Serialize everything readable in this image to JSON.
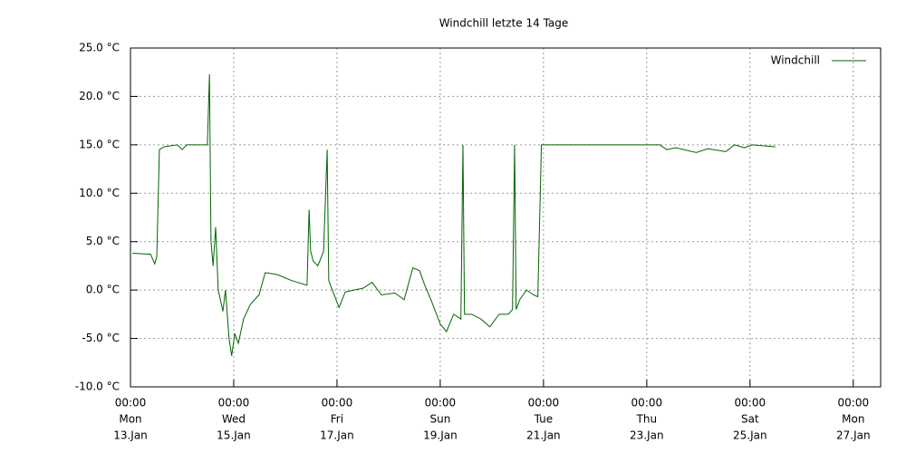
{
  "chart_data": {
    "type": "line",
    "title": "Windchill letzte 14 Tage",
    "xlim": [
      13,
      27.53
    ],
    "ylim": [
      -10,
      25
    ],
    "grid": true,
    "legend": "upper right",
    "xticks": [
      {
        "value": 13,
        "label": [
          "00:00",
          "Mon",
          "13.Jan"
        ]
      },
      {
        "value": 15,
        "label": [
          "00:00",
          "Wed",
          "15.Jan"
        ]
      },
      {
        "value": 17,
        "label": [
          "00:00",
          "Fri",
          "17.Jan"
        ]
      },
      {
        "value": 19,
        "label": [
          "00:00",
          "Sun",
          "19.Jan"
        ]
      },
      {
        "value": 21,
        "label": [
          "00:00",
          "Tue",
          "21.Jan"
        ]
      },
      {
        "value": 23,
        "label": [
          "00:00",
          "Thu",
          "23.Jan"
        ]
      },
      {
        "value": 25,
        "label": [
          "00:00",
          "Sat",
          "25.Jan"
        ]
      },
      {
        "value": 27,
        "label": [
          "00:00",
          "Mon",
          "27.Jan"
        ]
      }
    ],
    "yticks": [
      {
        "value": -10,
        "label": "-10.0 °C"
      },
      {
        "value": -5,
        "label": "-5.0 °C"
      },
      {
        "value": 0,
        "label": "0.0 °C"
      },
      {
        "value": 5,
        "label": "5.0 °C"
      },
      {
        "value": 10,
        "label": "10.0 °C"
      },
      {
        "value": 15,
        "label": "15.0 °C"
      },
      {
        "value": 20,
        "label": "20.0 °C"
      },
      {
        "value": 25,
        "label": "25.0 °C"
      }
    ],
    "x": [
      13.04,
      13.39,
      13.47,
      13.51,
      13.56,
      13.65,
      13.91,
      14.0,
      14.09,
      14.49,
      14.53,
      14.56,
      14.6,
      14.65,
      14.7,
      14.79,
      14.84,
      14.91,
      14.96,
      15.02,
      15.09,
      15.19,
      15.32,
      15.49,
      15.61,
      15.84,
      16.11,
      16.42,
      16.46,
      16.49,
      16.54,
      16.63,
      16.74,
      16.81,
      16.84,
      16.91,
      17.04,
      17.16,
      17.33,
      17.51,
      17.68,
      17.86,
      18.12,
      18.3,
      18.47,
      18.6,
      18.7,
      18.82,
      19.0,
      19.12,
      19.26,
      19.4,
      19.44,
      19.47,
      19.61,
      19.79,
      19.96,
      20.14,
      20.32,
      20.4,
      20.44,
      20.47,
      20.54,
      20.67,
      20.81,
      20.89,
      20.96,
      23.25,
      23.39,
      23.56,
      23.96,
      24.18,
      24.53,
      24.7,
      24.89,
      25.05,
      25.49
    ],
    "series": [
      {
        "name": "Windchill",
        "color": "#006400",
        "values": [
          3.8,
          3.7,
          2.7,
          3.5,
          14.5,
          14.8,
          15,
          14.5,
          15,
          15,
          22.3,
          5,
          2.5,
          6.5,
          0,
          -2.2,
          0,
          -5,
          -6.8,
          -4.5,
          -5.5,
          -3,
          -1.5,
          -0.5,
          1.8,
          1.6,
          1,
          0.5,
          8.3,
          4,
          3,
          2.5,
          4,
          14.5,
          1,
          0,
          -1.8,
          -0.2,
          0,
          0.2,
          0.8,
          -0.5,
          -0.3,
          -1,
          2.3,
          2,
          0.5,
          -1,
          -3.5,
          -4.3,
          -2.5,
          -3,
          15,
          -2.5,
          -2.5,
          -3,
          -3.8,
          -2.5,
          -2.5,
          -2,
          15,
          -2,
          -1,
          0,
          -0.5,
          -0.7,
          15,
          15,
          14.5,
          14.7,
          14.2,
          14.6,
          14.3,
          15,
          14.7,
          15,
          14.8
        ]
      }
    ]
  }
}
